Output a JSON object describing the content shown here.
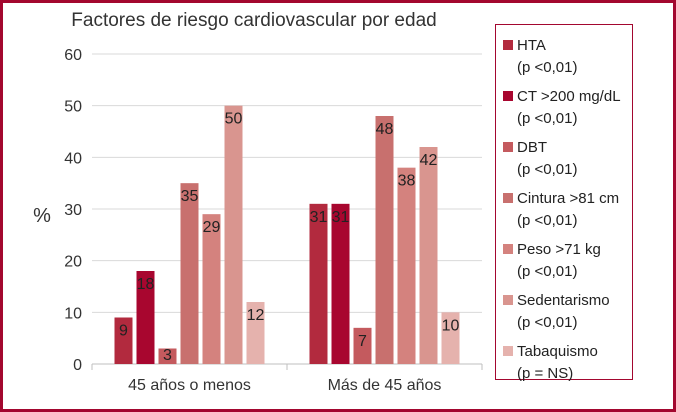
{
  "chart_data": {
    "type": "bar",
    "title": "Factores de riesgo cardiovascular por edad",
    "xlabel": "",
    "ylabel": "%",
    "ylim": [
      0,
      60
    ],
    "yticks": [
      "0",
      "10",
      "20",
      "30",
      "40",
      "50",
      "60"
    ],
    "grid": true,
    "legend_position": "right",
    "categories": [
      "45 años o menos",
      "Más de 45 años"
    ],
    "series": [
      {
        "name": "HTA",
        "note": "(p <0,01)",
        "color": "#b22a3e",
        "values": [
          9,
          31
        ]
      },
      {
        "name": "CT >200 mg/dL",
        "note": "(p <0,01)",
        "color": "#a8062f",
        "values": [
          18,
          31
        ]
      },
      {
        "name": "DBT",
        "note": "(p <0,01)",
        "color": "#c45a5e",
        "values": [
          3,
          7
        ]
      },
      {
        "name": "Cintura >81 cm",
        "note": "(p <0,01)",
        "color": "#c8706e",
        "values": [
          35,
          48
        ]
      },
      {
        "name": "Peso >71 kg",
        "note": "(p <0,01)",
        "color": "#d4827e",
        "values": [
          29,
          38
        ]
      },
      {
        "name": "Sedentarismo",
        "note": "(p <0,01)",
        "color": "#d9958f",
        "values": [
          50,
          42
        ]
      },
      {
        "name": "Tabaquismo",
        "note": "(p = NS)",
        "color": "#e5b2ad",
        "values": [
          12,
          10
        ]
      }
    ]
  }
}
